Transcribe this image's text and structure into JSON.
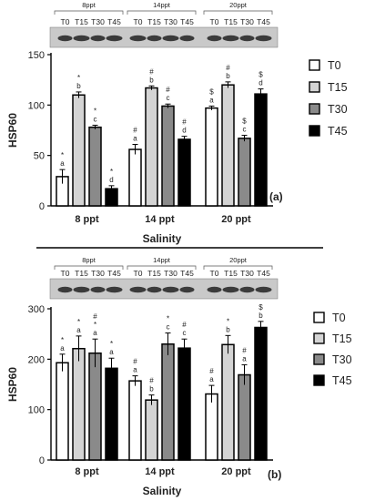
{
  "panel_tags": [
    "(a)",
    "(b)"
  ],
  "blot_labels": [
    "T0",
    "T15",
    "T30",
    "T45"
  ],
  "chart_data": [
    {
      "type": "bar",
      "title": "",
      "xlabel": "Salinity",
      "ylabel": "HSP60",
      "categories": [
        "8 ppt",
        "14 ppt",
        "20 ppt"
      ],
      "group_labels": [
        "8ppt",
        "14ppt",
        "20ppt"
      ],
      "ylim": [
        0,
        150
      ],
      "yticks": [
        0,
        50,
        100,
        150
      ],
      "grid": false,
      "legend_position": "right",
      "series": [
        {
          "name": "T0",
          "color": "#ffffff",
          "values": [
            29,
            56,
            97
          ],
          "errors": [
            7,
            5,
            2
          ]
        },
        {
          "name": "T15",
          "color": "#d4d4d4",
          "values": [
            110,
            117,
            120
          ],
          "errors": [
            3,
            2,
            3
          ]
        },
        {
          "name": "T30",
          "color": "#8a8a8a",
          "values": [
            78,
            99,
            67
          ],
          "errors": [
            2,
            2,
            3
          ]
        },
        {
          "name": "T45",
          "color": "#000000",
          "values": [
            17,
            66,
            111
          ],
          "errors": [
            3,
            3,
            5
          ]
        }
      ],
      "annotations": [
        [
          [
            "*",
            "a"
          ],
          [
            "*",
            "b"
          ],
          [
            "*",
            "c"
          ],
          [
            "*",
            "d"
          ]
        ],
        [
          [
            "#",
            "a"
          ],
          [
            "#",
            "b"
          ],
          [
            "#",
            "c"
          ],
          [
            "#",
            "d"
          ]
        ],
        [
          [
            "$",
            "a"
          ],
          [
            "#",
            "b"
          ],
          [
            "$",
            "c"
          ],
          [
            "$",
            "d"
          ]
        ]
      ],
      "panel_tag": "(a)"
    },
    {
      "type": "bar",
      "title": "",
      "xlabel": "Salinity",
      "ylabel": "HSP60",
      "categories": [
        "8 ppt",
        "14 ppt",
        "20 ppt"
      ],
      "group_labels": [
        "8ppt",
        "14ppt",
        "20ppt"
      ],
      "ylim": [
        0,
        300
      ],
      "yticks": [
        0,
        100,
        200,
        300
      ],
      "grid": false,
      "legend_position": "right",
      "series": [
        {
          "name": "T0",
          "color": "#ffffff",
          "values": [
            193,
            157,
            131
          ],
          "errors": [
            17,
            10,
            17
          ]
        },
        {
          "name": "T15",
          "color": "#d4d4d4",
          "values": [
            221,
            119,
            229
          ],
          "errors": [
            25,
            10,
            18
          ]
        },
        {
          "name": "T30",
          "color": "#8a8a8a",
          "values": [
            212,
            230,
            169
          ],
          "errors": [
            28,
            22,
            20
          ]
        },
        {
          "name": "T45",
          "color": "#000000",
          "values": [
            182,
            222,
            263
          ],
          "errors": [
            20,
            18,
            12
          ]
        }
      ],
      "annotations": [
        [
          [
            "*",
            "a"
          ],
          [
            "*",
            "a"
          ],
          [
            "#",
            "*",
            "a"
          ],
          [
            "*",
            "a"
          ]
        ],
        [
          [
            "#",
            "a"
          ],
          [
            "#",
            "b"
          ],
          [
            "*",
            "c"
          ],
          [
            "#",
            "c"
          ]
        ],
        [
          [
            "#",
            "a"
          ],
          [
            "*",
            "b"
          ],
          [
            "#",
            "a"
          ],
          [
            "$",
            "b"
          ]
        ]
      ],
      "panel_tag": "(b)"
    }
  ]
}
